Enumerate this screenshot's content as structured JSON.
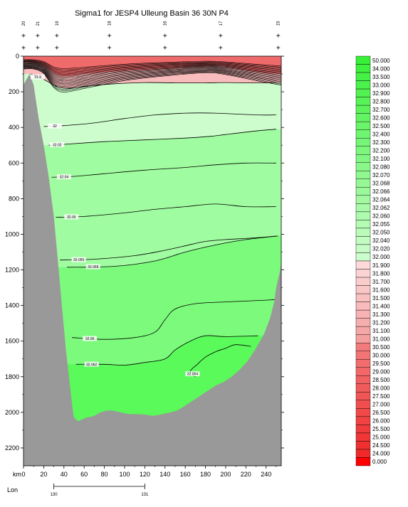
{
  "chart_data": {
    "type": "contour-section",
    "title": "Sigma1 for JESP4 Ulleung Basin 36 30N P4",
    "x_axis": {
      "label": "km",
      "min": 0,
      "max": 255,
      "ticks": [
        0,
        20,
        40,
        60,
        80,
        100,
        120,
        140,
        160,
        180,
        200,
        220,
        240
      ]
    },
    "y_axis": {
      "min": 0,
      "max": 2300,
      "inverted": true,
      "ticks": [
        0,
        200,
        400,
        600,
        800,
        1000,
        1200,
        1400,
        1600,
        1800,
        2000,
        2200
      ]
    },
    "lon_axis": {
      "label": "Lon",
      "ticks": [
        {
          "lon": "130",
          "km": 30
        },
        {
          "lon": "131",
          "km": 120
        }
      ]
    },
    "stations": [
      {
        "name": "20",
        "km": 0
      },
      {
        "name": "21",
        "km": 14
      },
      {
        "name": "19",
        "km": 33
      },
      {
        "name": "18",
        "km": 85
      },
      {
        "name": "16",
        "km": 140
      },
      {
        "name": "17",
        "km": 195
      },
      {
        "name": "15",
        "km": 252
      }
    ],
    "contours": [
      {
        "level": "31.9",
        "points": [
          [
            7,
            100
          ],
          [
            20,
            130
          ],
          [
            33,
            170
          ],
          [
            45,
            180
          ],
          [
            60,
            170
          ],
          [
            90,
            155
          ],
          [
            120,
            148
          ],
          [
            150,
            150
          ],
          [
            180,
            150
          ],
          [
            200,
            148
          ],
          [
            225,
            150
          ],
          [
            250,
            150
          ]
        ]
      },
      {
        "level": "32",
        "points": [
          [
            20,
            395
          ],
          [
            40,
            390
          ],
          [
            70,
            375
          ],
          [
            100,
            350
          ],
          [
            130,
            330
          ],
          [
            160,
            320
          ],
          [
            190,
            320
          ],
          [
            230,
            330
          ],
          [
            250,
            330
          ]
        ]
      },
      {
        "level": "32.02",
        "points": [
          [
            25,
            500
          ],
          [
            40,
            495
          ],
          [
            80,
            480
          ],
          [
            120,
            470
          ],
          [
            160,
            460
          ],
          [
            185,
            450
          ],
          [
            200,
            440
          ],
          [
            230,
            420
          ],
          [
            250,
            410
          ]
        ]
      },
      {
        "level": "32.04",
        "points": [
          [
            28,
            680
          ],
          [
            50,
            675
          ],
          [
            80,
            660
          ],
          [
            120,
            640
          ],
          [
            160,
            625
          ],
          [
            190,
            610
          ],
          [
            220,
            600
          ],
          [
            250,
            600
          ]
        ]
      },
      {
        "level": "32.05",
        "points": [
          [
            32,
            905
          ],
          [
            60,
            900
          ],
          [
            100,
            880
          ],
          [
            130,
            860
          ],
          [
            160,
            845
          ],
          [
            190,
            830
          ],
          [
            220,
            845
          ],
          [
            250,
            845
          ]
        ]
      },
      {
        "level": "32.055",
        "points": [
          [
            36,
            1145
          ],
          [
            70,
            1140
          ],
          [
            110,
            1120
          ],
          [
            140,
            1090
          ],
          [
            160,
            1065
          ],
          [
            180,
            1040
          ],
          [
            200,
            1030
          ],
          [
            230,
            1020
          ],
          [
            252,
            1010
          ]
        ]
      },
      {
        "level": "32.058",
        "points": [
          [
            43,
            1185
          ],
          [
            90,
            1180
          ],
          [
            130,
            1150
          ],
          [
            160,
            1100
          ],
          [
            190,
            1060
          ],
          [
            220,
            1030
          ],
          [
            250,
            1010
          ]
        ]
      },
      {
        "level": "32.06",
        "points": [
          [
            48,
            1580
          ],
          [
            80,
            1590
          ],
          [
            110,
            1580
          ],
          [
            130,
            1550
          ],
          [
            140,
            1480
          ],
          [
            150,
            1420
          ],
          [
            170,
            1390
          ],
          [
            200,
            1380
          ],
          [
            240,
            1370
          ],
          [
            252,
            1365
          ]
        ]
      },
      {
        "level": "32.062",
        "points": [
          [
            52,
            1730
          ],
          [
            80,
            1730
          ],
          [
            100,
            1735
          ],
          [
            120,
            1720
          ],
          [
            140,
            1700
          ],
          [
            150,
            1650
          ],
          [
            165,
            1600
          ],
          [
            180,
            1570
          ],
          [
            200,
            1575
          ],
          [
            232,
            1570
          ]
        ]
      },
      {
        "level": "32.064",
        "points": [
          [
            170,
            1800
          ],
          [
            165,
            1770
          ],
          [
            172,
            1730
          ],
          [
            180,
            1690
          ],
          [
            190,
            1660
          ],
          [
            200,
            1640
          ],
          [
            210,
            1620
          ],
          [
            225,
            1630
          ]
        ]
      }
    ],
    "fill_regions": [
      {
        "name": "lt-31.0",
        "color": "#ef6b6b"
      },
      {
        "name": "31.0-31.9",
        "color": "#f9bcbc"
      },
      {
        "name": "31.9-32.02",
        "color": "#cdfdcd"
      },
      {
        "name": "32.02-32.058",
        "color": "#a0fca0"
      },
      {
        "name": "32.058-32.062",
        "color": "#7cfa7c"
      },
      {
        "name": "gt-32.062",
        "color": "#5afa5a"
      }
    ],
    "colorbar": {
      "labels": [
        "50.000",
        "34.000",
        "33.500",
        "33.000",
        "32.900",
        "32.800",
        "32.700",
        "32.600",
        "32.500",
        "32.400",
        "32.300",
        "32.200",
        "32.100",
        "32.080",
        "32.070",
        "32.068",
        "32.066",
        "32.064",
        "32.062",
        "32.060",
        "32.055",
        "32.050",
        "32.040",
        "32.020",
        "32.000",
        "31.900",
        "31.800",
        "31.700",
        "31.600",
        "31.500",
        "31.400",
        "31.300",
        "31.200",
        "31.100",
        "31.000",
        "30.500",
        "30.000",
        "29.500",
        "29.000",
        "28.500",
        "28.000",
        "27.500",
        "27.000",
        "26.500",
        "26.000",
        "25.500",
        "25.000",
        "24.500",
        "24.000",
        "0.000"
      ]
    }
  }
}
